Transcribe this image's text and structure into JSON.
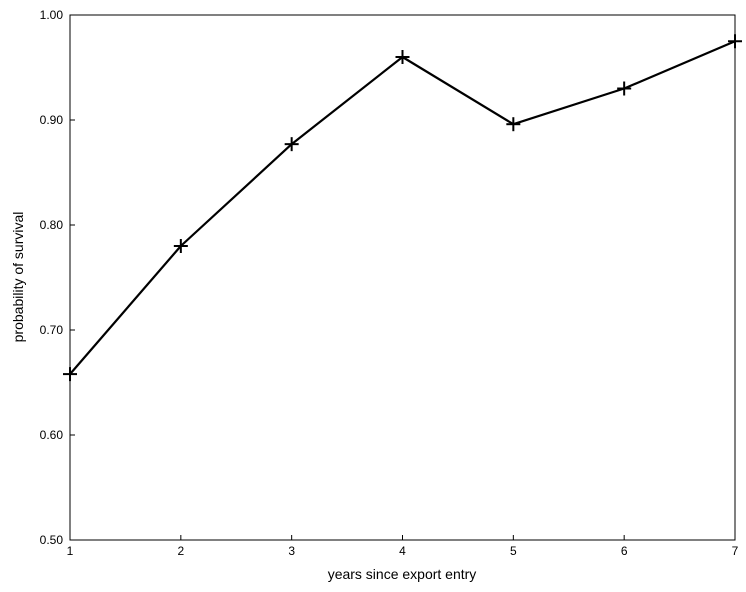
{
  "chart_data": {
    "type": "line",
    "title": "",
    "xlabel": "years since export entry",
    "ylabel": "probability of survival",
    "x": [
      1,
      2,
      3,
      4,
      5,
      6,
      7
    ],
    "series": [
      {
        "values": [
          0.658,
          0.78,
          0.877,
          0.96,
          0.896,
          0.93,
          0.975
        ]
      }
    ],
    "xlim": [
      1,
      7
    ],
    "ylim": [
      0.5,
      1.0
    ],
    "xticks": [
      "1",
      "2",
      "3",
      "4",
      "5",
      "6",
      "7"
    ],
    "yticks": [
      0.5,
      0.6,
      0.7,
      0.8,
      0.9,
      1.0
    ],
    "ytick_labels": [
      "0.50",
      "0.60",
      "0.70",
      "0.80",
      "0.90",
      "1.00"
    ],
    "marker": "plus",
    "grid": false,
    "legend": "none",
    "line_color": "#000000"
  }
}
